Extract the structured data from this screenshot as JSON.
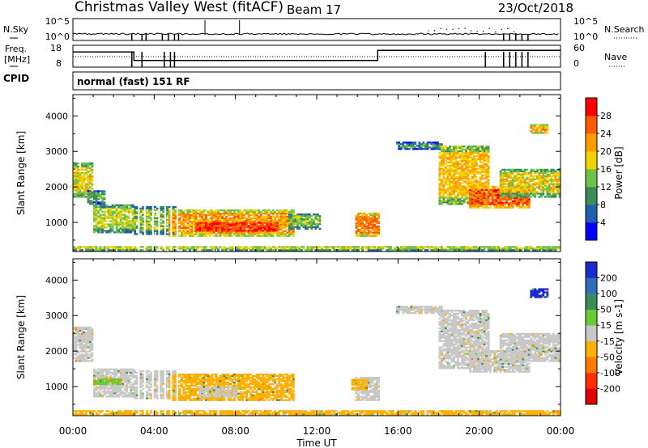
{
  "header": {
    "title": "Christmas Valley West (fitACF)",
    "beam": "Beam 17",
    "date": "23/Oct/2018"
  },
  "top_panels": {
    "nsky": {
      "left_label": "N.Sky",
      "left_ticks": [
        "10^5",
        "10^0"
      ],
      "right_label": "N.Search",
      "right_ticks": [
        "10^5",
        "10^0"
      ]
    },
    "freq": {
      "left_label_1": "Freq.",
      "left_label_2": "[MHz]",
      "left_ticks": [
        "18",
        "8"
      ],
      "right_label": "Nave",
      "right_ticks": [
        "60",
        "0"
      ],
      "freq_levels_mhz": [
        {
          "from_hour": 0,
          "to_hour": 3.0,
          "value": 15
        },
        {
          "from_hour": 3.0,
          "to_hour": 15.0,
          "value": 10
        },
        {
          "from_hour": 15.0,
          "to_hour": 24.0,
          "value": 16
        }
      ]
    },
    "cpid": {
      "label": "CPID",
      "program": "normal (fast) 151 RF"
    }
  },
  "colors": {
    "frame": "#000000",
    "ground_scatter": "#c8c8c8"
  },
  "chart_data": [
    {
      "type": "heatmap",
      "name": "power",
      "ylabel": "Slant Range [km]",
      "xlabel": "Time UT",
      "ylim": [
        180,
        4600
      ],
      "xlim_hours": [
        0,
        24
      ],
      "y_ticks": [
        "1000",
        "2000",
        "3000",
        "4000"
      ],
      "y_tick_values": [
        1000,
        2000,
        3000,
        4000
      ],
      "x_ticks": [
        "00:00",
        "04:00",
        "08:00",
        "12:00",
        "16:00",
        "20:00",
        "00:00"
      ],
      "colorbar": {
        "label": "Power [dB]",
        "ticks": [
          "4",
          "8",
          "12",
          "16",
          "20",
          "24",
          "28"
        ],
        "tick_values": [
          4,
          8,
          12,
          16,
          20,
          24,
          28
        ],
        "range": [
          0,
          32
        ],
        "colors": [
          "#0000ff",
          "#1e5fb0",
          "#3c8c5a",
          "#6ec24a",
          "#f2d200",
          "#ff9a00",
          "#ff5a00",
          "#ff0000"
        ]
      },
      "regions": [
        {
          "t0": 0.0,
          "t1": 0.9,
          "r0": 1700,
          "r1": 2650,
          "level": 18
        },
        {
          "t0": 0.7,
          "t1": 1.6,
          "r0": 1500,
          "r1": 1900,
          "level": 12
        },
        {
          "t0": 1.0,
          "t1": 3.0,
          "r0": 700,
          "r1": 1500,
          "level": 16
        },
        {
          "t0": 3.0,
          "t1": 5.0,
          "r0": 650,
          "r1": 1450,
          "level": 14
        },
        {
          "t0": 4.7,
          "t1": 10.8,
          "r0": 600,
          "r1": 1350,
          "level": 22
        },
        {
          "t0": 6.0,
          "t1": 10.0,
          "r0": 700,
          "r1": 1050,
          "level": 28
        },
        {
          "t0": 10.6,
          "t1": 12.1,
          "r0": 800,
          "r1": 1250,
          "level": 14
        },
        {
          "t0": 13.9,
          "t1": 15.0,
          "r0": 600,
          "r1": 1250,
          "level": 24
        },
        {
          "t0": 15.9,
          "t1": 18.2,
          "r0": 3050,
          "r1": 3250,
          "level": 10
        },
        {
          "t0": 18.0,
          "t1": 20.5,
          "r0": 1500,
          "r1": 3150,
          "level": 20
        },
        {
          "t0": 19.5,
          "t1": 22.5,
          "r0": 1400,
          "r1": 2000,
          "level": 26
        },
        {
          "t0": 21.0,
          "t1": 24.0,
          "r0": 1700,
          "r1": 2500,
          "level": 18
        },
        {
          "t0": 22.5,
          "t1": 23.4,
          "r0": 3500,
          "r1": 3750,
          "level": 22
        },
        {
          "t0": 0.0,
          "t1": 24.0,
          "r0": 200,
          "r1": 330,
          "level": 16
        }
      ]
    },
    {
      "type": "heatmap",
      "name": "velocity",
      "ylabel": "Slant Range [km]",
      "xlabel": "Time UT",
      "ylim": [
        180,
        4600
      ],
      "xlim_hours": [
        0,
        24
      ],
      "y_ticks": [
        "1000",
        "2000",
        "3000",
        "4000"
      ],
      "y_tick_values": [
        1000,
        2000,
        3000,
        4000
      ],
      "x_ticks": [
        "00:00",
        "04:00",
        "08:00",
        "12:00",
        "16:00",
        "20:00",
        "00:00"
      ],
      "colorbar": {
        "label": "Velocity [m s-1]",
        "ticks": [
          "200",
          "100",
          "50",
          "15",
          "-15",
          "-50",
          "-100",
          "-200"
        ],
        "tick_values": [
          200,
          100,
          50,
          15,
          -15,
          -50,
          -100,
          -200
        ],
        "colors": [
          "#1a2ad0",
          "#2e6fb8",
          "#3c8c5a",
          "#66cc33",
          "#c8c8c8",
          "#ffb000",
          "#ff7a00",
          "#ff3000",
          "#e00000"
        ]
      },
      "regions": [
        {
          "t0": 0.0,
          "t1": 0.9,
          "r0": 1700,
          "r1": 2650,
          "level": 0
        },
        {
          "t0": 1.0,
          "t1": 3.0,
          "r0": 700,
          "r1": 1500,
          "level": 0
        },
        {
          "t0": 1.0,
          "t1": 2.4,
          "r0": 1050,
          "r1": 1200,
          "level": 30
        },
        {
          "t0": 3.0,
          "t1": 5.0,
          "r0": 650,
          "r1": 1450,
          "level": 0
        },
        {
          "t0": 4.7,
          "t1": 10.8,
          "r0": 600,
          "r1": 1350,
          "level": -30
        },
        {
          "t0": 6.2,
          "t1": 8.0,
          "r0": 700,
          "r1": 1000,
          "level": 0
        },
        {
          "t0": 13.9,
          "t1": 15.0,
          "r0": 600,
          "r1": 1250,
          "level": 0
        },
        {
          "t0": 13.7,
          "t1": 14.4,
          "r0": 900,
          "r1": 1200,
          "level": -30
        },
        {
          "t0": 15.9,
          "t1": 18.2,
          "r0": 3050,
          "r1": 3250,
          "level": 0
        },
        {
          "t0": 18.0,
          "t1": 20.5,
          "r0": 1500,
          "r1": 3150,
          "level": 0
        },
        {
          "t0": 19.5,
          "t1": 22.5,
          "r0": 1400,
          "r1": 2000,
          "level": 0
        },
        {
          "t0": 21.0,
          "t1": 24.0,
          "r0": 1700,
          "r1": 2500,
          "level": 0
        },
        {
          "t0": 22.5,
          "t1": 23.4,
          "r0": 3500,
          "r1": 3750,
          "level": 150
        },
        {
          "t0": 0.0,
          "t1": 24.0,
          "r0": 200,
          "r1": 330,
          "level": -30
        }
      ]
    }
  ]
}
